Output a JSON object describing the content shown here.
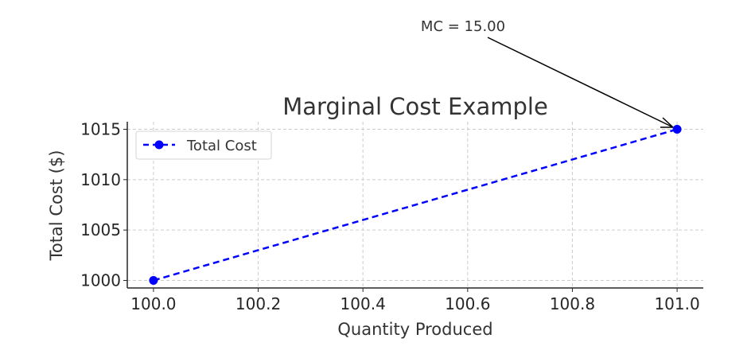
{
  "chart_data": {
    "type": "line",
    "title": "Marginal Cost Example",
    "xlabel": "Quantity Produced",
    "ylabel": "Total Cost ($)",
    "xlim": [
      99.95,
      101.05
    ],
    "ylim": [
      999.25,
      1015.75
    ],
    "xticks": [
      "100.0",
      "100.2",
      "100.4",
      "100.6",
      "100.8",
      "101.0"
    ],
    "xtick_values": [
      100.0,
      100.2,
      100.4,
      100.6,
      100.8,
      101.0
    ],
    "yticks": [
      "1000",
      "1005",
      "1010",
      "1015"
    ],
    "ytick_values": [
      1000,
      1005,
      1010,
      1015
    ],
    "grid": true,
    "legend_position": "upper-left",
    "series": [
      {
        "name": "Total Cost",
        "x": [
          100,
          101
        ],
        "y": [
          1000,
          1015
        ],
        "color": "#0000ff",
        "linestyle": "dashed",
        "marker": "circle"
      }
    ],
    "annotation": {
      "text": "MC = 15.00",
      "x": 101,
      "y": 1015
    }
  }
}
